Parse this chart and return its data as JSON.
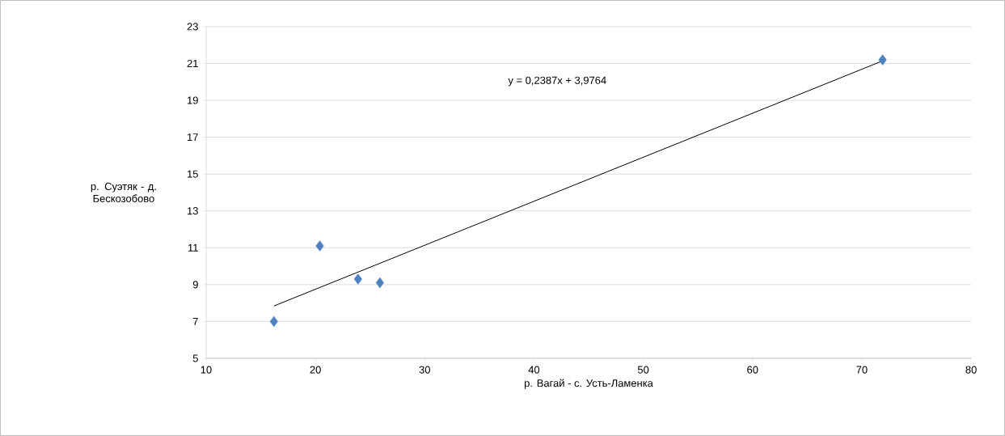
{
  "chart_data": {
    "type": "scatter",
    "xlabel": "р. Вагай - с. Усть-Ламенка",
    "ylabel": "р. Суэтяк - д. Бескозобово",
    "annotations": [
      "y = 0,2387x + 3,9764"
    ],
    "series": [
      {
        "color": "#4f81bd",
        "x": [
          16.2,
          20.4,
          23.9,
          25.9,
          71.9
        ],
        "values": [
          7.0,
          11.1,
          9.3,
          9.1,
          21.2
        ]
      },
      {
        "type": "line",
        "color": "#000000",
        "marker": "none",
        "x": [
          16.2,
          71.9
        ],
        "values": [
          7.84,
          21.14
        ]
      }
    ],
    "xlim": [
      10,
      80
    ],
    "ylim": [
      5,
      23
    ],
    "xticks": [
      10,
      20,
      30,
      40,
      50,
      60,
      70,
      80
    ],
    "yticks": [
      5,
      7,
      9,
      11,
      13,
      15,
      17,
      19,
      21,
      23
    ],
    "grid": "y",
    "marker": "diamond"
  }
}
